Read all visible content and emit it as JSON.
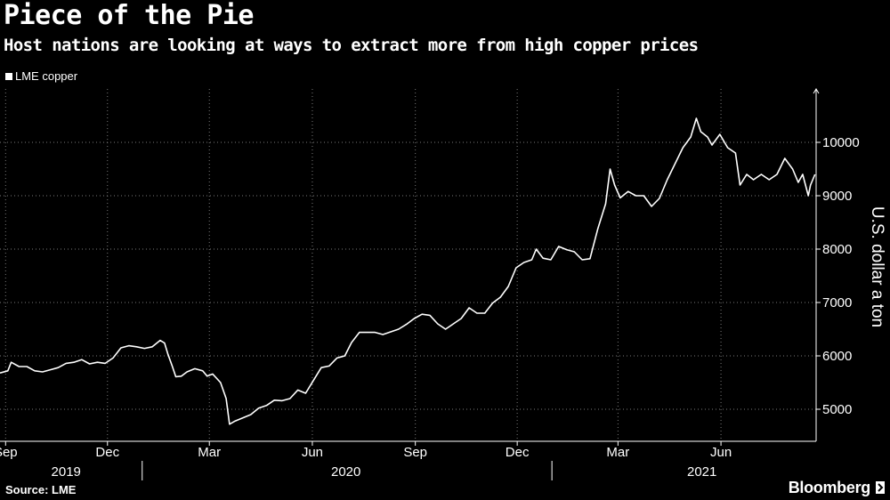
{
  "header": {
    "title": "Piece of the Pie",
    "subtitle": "Host nations are looking at ways to extract more from high copper prices"
  },
  "footer": {
    "source": "Source: LME",
    "brand": "Bloomberg"
  },
  "colors": {
    "background": "#000000",
    "line": "#ffffff",
    "grid": "#7a7a7a"
  },
  "chart_data": {
    "type": "line",
    "legend_position": "top-left",
    "grid": true,
    "ylabel": "U.S. dollar a ton",
    "ylim": [
      4400,
      11000
    ],
    "yticks": [
      5000,
      6000,
      7000,
      8000,
      9000,
      10000
    ],
    "xlim": [
      "2019-08-27",
      "2021-08-25"
    ],
    "x_month_ticks": [
      {
        "label": "Sep",
        "date": "2019-09-01"
      },
      {
        "label": "Dec",
        "date": "2019-12-01"
      },
      {
        "label": "Mar",
        "date": "2020-03-01"
      },
      {
        "label": "Jun",
        "date": "2020-06-01"
      },
      {
        "label": "Sep",
        "date": "2020-09-01"
      },
      {
        "label": "Dec",
        "date": "2020-12-01"
      },
      {
        "label": "Mar",
        "date": "2021-03-01"
      },
      {
        "label": "Jun",
        "date": "2021-06-01"
      }
    ],
    "x_year_labels": [
      {
        "label": "2019",
        "date": "2019-10-25"
      },
      {
        "label": "2020",
        "date": "2020-07-01"
      },
      {
        "label": "2021",
        "date": "2021-05-15"
      }
    ],
    "year_dividers": [
      "2020-01-01",
      "2021-01-01"
    ],
    "series": [
      {
        "name": "LME copper",
        "points": [
          [
            "2019-08-27",
            5680
          ],
          [
            "2019-09-03",
            5720
          ],
          [
            "2019-09-06",
            5880
          ],
          [
            "2019-09-13",
            5800
          ],
          [
            "2019-09-20",
            5800
          ],
          [
            "2019-09-27",
            5720
          ],
          [
            "2019-10-04",
            5700
          ],
          [
            "2019-10-11",
            5740
          ],
          [
            "2019-10-18",
            5780
          ],
          [
            "2019-10-25",
            5860
          ],
          [
            "2019-11-01",
            5880
          ],
          [
            "2019-11-08",
            5930
          ],
          [
            "2019-11-15",
            5850
          ],
          [
            "2019-11-22",
            5880
          ],
          [
            "2019-11-29",
            5860
          ],
          [
            "2019-12-06",
            5960
          ],
          [
            "2019-12-13",
            6150
          ],
          [
            "2019-12-20",
            6190
          ],
          [
            "2019-12-27",
            6170
          ],
          [
            "2020-01-03",
            6140
          ],
          [
            "2020-01-10",
            6170
          ],
          [
            "2020-01-17",
            6290
          ],
          [
            "2020-01-21",
            6240
          ],
          [
            "2020-01-24",
            6030
          ],
          [
            "2020-01-28",
            5800
          ],
          [
            "2020-01-31",
            5610
          ],
          [
            "2020-02-05",
            5620
          ],
          [
            "2020-02-10",
            5700
          ],
          [
            "2020-02-17",
            5760
          ],
          [
            "2020-02-24",
            5720
          ],
          [
            "2020-02-28",
            5620
          ],
          [
            "2020-03-04",
            5660
          ],
          [
            "2020-03-11",
            5500
          ],
          [
            "2020-03-16",
            5200
          ],
          [
            "2020-03-19",
            4720
          ],
          [
            "2020-03-24",
            4780
          ],
          [
            "2020-03-31",
            4840
          ],
          [
            "2020-04-07",
            4900
          ],
          [
            "2020-04-14",
            5020
          ],
          [
            "2020-04-21",
            5070
          ],
          [
            "2020-04-28",
            5170
          ],
          [
            "2020-05-05",
            5160
          ],
          [
            "2020-05-12",
            5200
          ],
          [
            "2020-05-19",
            5360
          ],
          [
            "2020-05-26",
            5300
          ],
          [
            "2020-06-02",
            5540
          ],
          [
            "2020-06-09",
            5780
          ],
          [
            "2020-06-16",
            5810
          ],
          [
            "2020-06-23",
            5960
          ],
          [
            "2020-06-30",
            6000
          ],
          [
            "2020-07-06",
            6250
          ],
          [
            "2020-07-13",
            6440
          ],
          [
            "2020-07-20",
            6440
          ],
          [
            "2020-07-27",
            6440
          ],
          [
            "2020-08-03",
            6400
          ],
          [
            "2020-08-10",
            6450
          ],
          [
            "2020-08-17",
            6500
          ],
          [
            "2020-08-24",
            6590
          ],
          [
            "2020-08-31",
            6700
          ],
          [
            "2020-09-07",
            6780
          ],
          [
            "2020-09-14",
            6760
          ],
          [
            "2020-09-21",
            6600
          ],
          [
            "2020-09-28",
            6500
          ],
          [
            "2020-10-05",
            6600
          ],
          [
            "2020-10-12",
            6700
          ],
          [
            "2020-10-19",
            6900
          ],
          [
            "2020-10-26",
            6800
          ],
          [
            "2020-11-02",
            6800
          ],
          [
            "2020-11-09",
            6990
          ],
          [
            "2020-11-16",
            7100
          ],
          [
            "2020-11-23",
            7300
          ],
          [
            "2020-11-30",
            7650
          ],
          [
            "2020-12-07",
            7750
          ],
          [
            "2020-12-14",
            7800
          ],
          [
            "2020-12-18",
            8000
          ],
          [
            "2020-12-24",
            7830
          ],
          [
            "2020-12-31",
            7800
          ],
          [
            "2021-01-07",
            8050
          ],
          [
            "2021-01-14",
            7990
          ],
          [
            "2021-01-21",
            7950
          ],
          [
            "2021-01-28",
            7800
          ],
          [
            "2021-02-04",
            7820
          ],
          [
            "2021-02-11",
            8380
          ],
          [
            "2021-02-18",
            8850
          ],
          [
            "2021-02-22",
            9500
          ],
          [
            "2021-02-26",
            9200
          ],
          [
            "2021-03-03",
            8960
          ],
          [
            "2021-03-10",
            9080
          ],
          [
            "2021-03-17",
            9000
          ],
          [
            "2021-03-24",
            9000
          ],
          [
            "2021-03-31",
            8800
          ],
          [
            "2021-04-07",
            8950
          ],
          [
            "2021-04-14",
            9300
          ],
          [
            "2021-04-21",
            9600
          ],
          [
            "2021-04-28",
            9900
          ],
          [
            "2021-05-05",
            10100
          ],
          [
            "2021-05-10",
            10450
          ],
          [
            "2021-05-14",
            10200
          ],
          [
            "2021-05-20",
            10100
          ],
          [
            "2021-05-24",
            9950
          ],
          [
            "2021-05-31",
            10150
          ],
          [
            "2021-06-07",
            9900
          ],
          [
            "2021-06-14",
            9800
          ],
          [
            "2021-06-18",
            9200
          ],
          [
            "2021-06-24",
            9400
          ],
          [
            "2021-06-30",
            9300
          ],
          [
            "2021-07-07",
            9400
          ],
          [
            "2021-07-14",
            9300
          ],
          [
            "2021-07-21",
            9400
          ],
          [
            "2021-07-28",
            9700
          ],
          [
            "2021-08-04",
            9500
          ],
          [
            "2021-08-09",
            9250
          ],
          [
            "2021-08-13",
            9400
          ],
          [
            "2021-08-18",
            9000
          ],
          [
            "2021-08-20",
            9200
          ],
          [
            "2021-08-24",
            9400
          ]
        ]
      }
    ]
  }
}
